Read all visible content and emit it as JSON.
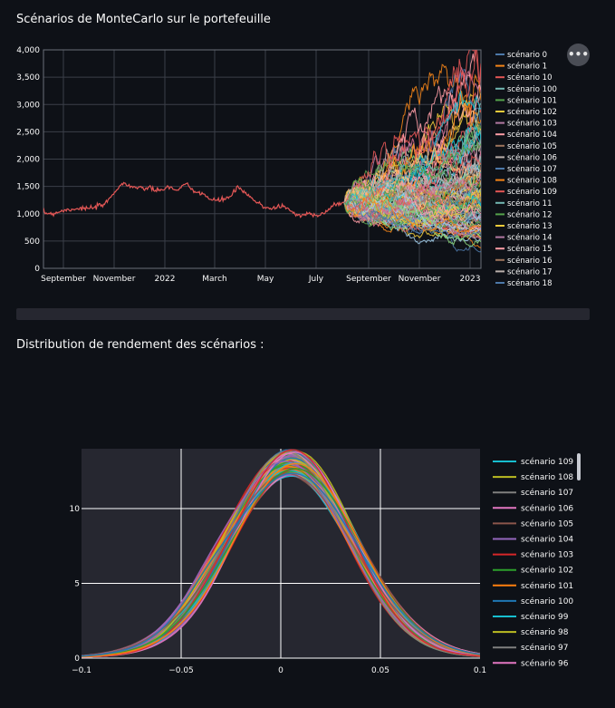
{
  "page": {
    "title1": "Scénarios de MonteCarlo sur le portefeuille",
    "title2": "Distribution de rendement des scénarios :",
    "menu_icon": "more-horizontal-icon"
  },
  "chart_data": [
    {
      "type": "line",
      "title": "",
      "xlabel": "",
      "ylabel": "",
      "x_tick_labels": [
        "September",
        "November",
        "2022",
        "March",
        "May",
        "July",
        "September",
        "November",
        "2023"
      ],
      "y_ticks": [
        0,
        500,
        1000,
        1500,
        2000,
        2500,
        3000,
        3500,
        4000
      ],
      "y_tick_labels": [
        "0",
        "500",
        "1,000",
        "1,500",
        "2,000",
        "2,500",
        "3,000",
        "3,500",
        "4,000"
      ],
      "ylim": [
        0,
        4000
      ],
      "grid": true,
      "legend_position": "right",
      "history": [
        1020,
        1000,
        1050,
        1080,
        1100,
        1090,
        1120,
        1180,
        1400,
        1560,
        1500,
        1450,
        1480,
        1400,
        1500,
        1420,
        1550,
        1400,
        1380,
        1240,
        1250,
        1300,
        1480,
        1350,
        1220,
        1120,
        1100,
        1150,
        1050,
        950,
        1010,
        980,
        1030,
        1180,
        1200
      ],
      "scenario_summary": {
        "count": 110,
        "final_min": 300,
        "final_median": 1250,
        "final_max": 3650
      },
      "legend": [
        "scénario 0",
        "scénario 1",
        "scénario 10",
        "scénario 100",
        "scénario 101",
        "scénario 102",
        "scénario 103",
        "scénario 104",
        "scénario 105",
        "scénario 106",
        "scénario 107",
        "scénario 108",
        "scénario 109",
        "scénario 11",
        "scénario 12",
        "scénario 13",
        "scénario 14",
        "scénario 15",
        "scénario 16",
        "scénario 17",
        "scénario 18"
      ],
      "legend_colors": [
        "#4c78a8",
        "#f58518",
        "#e45756",
        "#72b7b2",
        "#54a24b",
        "#eeca3b",
        "#b279a2",
        "#ff9da6",
        "#9d755d",
        "#bab0ac",
        "#4c78a8",
        "#f58518",
        "#e45756",
        "#72b7b2",
        "#54a24b",
        "#eeca3b",
        "#b279a2",
        "#ff9da6",
        "#9d755d",
        "#bab0ac",
        "#4c78a8"
      ]
    },
    {
      "type": "line",
      "title": "",
      "xlabel": "",
      "ylabel": "",
      "xlim": [
        -0.1,
        0.1
      ],
      "ylim": [
        0,
        14
      ],
      "x_ticks": [
        -0.1,
        -0.05,
        0,
        0.05,
        0.1
      ],
      "x_tick_labels": [
        "−0.1",
        "−0.05",
        "0",
        "0.05",
        "0.1"
      ],
      "y_ticks": [
        0,
        5,
        10
      ],
      "y_tick_labels": [
        "0",
        "5",
        "10"
      ],
      "grid": true,
      "legend_position": "right",
      "density_summary": {
        "series_count": 110,
        "peak_x": 0.005,
        "peak_y_min": 12,
        "peak_y_max": 13.8,
        "std_approx": 0.03
      },
      "legend": [
        "scénario 109",
        "scénario 108",
        "scénario 107",
        "scénario 106",
        "scénario 105",
        "scénario 104",
        "scénario 103",
        "scénario 102",
        "scénario 101",
        "scénario 100",
        "scénario 99",
        "scénario 98",
        "scénario 97",
        "scénario 96"
      ],
      "legend_colors": [
        "#17becf",
        "#bcbd22",
        "#7f7f7f",
        "#e377c2",
        "#8c564b",
        "#9467bd",
        "#d62728",
        "#2ca02c",
        "#ff7f0e",
        "#1f77b4",
        "#17becf",
        "#bcbd22",
        "#7f7f7f",
        "#e377c2"
      ]
    }
  ],
  "colors": {
    "background": "#0e1117",
    "plot1_bg": "#0e1117",
    "plot2_bg": "#262730",
    "history_line": "#e45756",
    "grid1": "#3b3f49",
    "grid2": "#ffffff",
    "text": "#fafafa"
  }
}
